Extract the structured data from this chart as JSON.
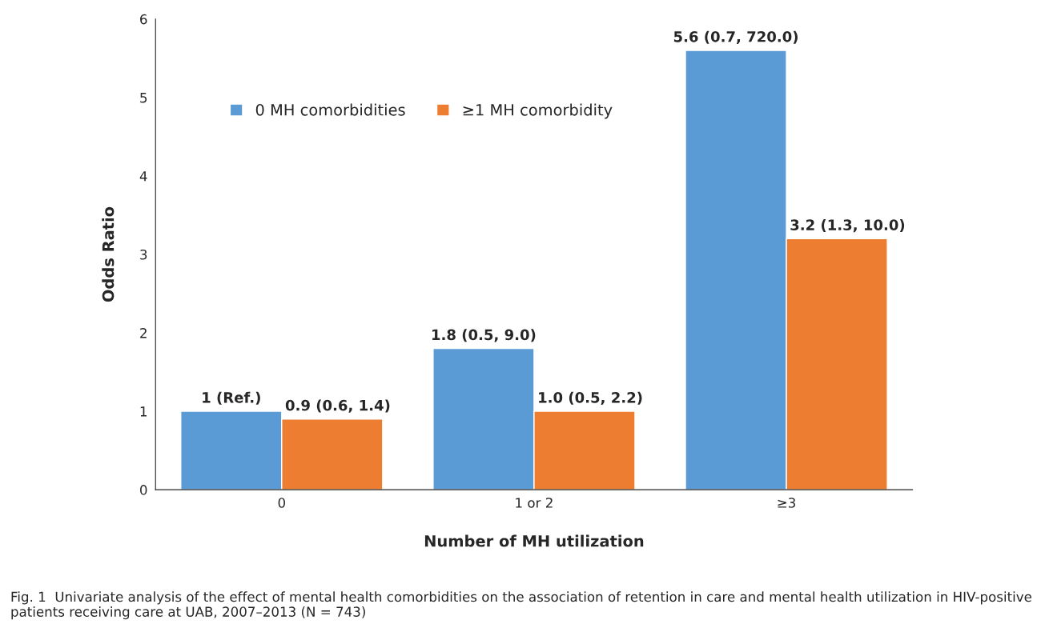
{
  "chart_data": {
    "type": "bar",
    "xlabel": "Number of MH utilization",
    "ylabel": "Odds Ratio",
    "categories": [
      "0",
      "1 or 2",
      "≥3"
    ],
    "series": [
      {
        "name": "0 MH comorbidities",
        "color": "#5b9bd5",
        "values": [
          1,
          1.8,
          5.6
        ],
        "value_labels": [
          "1 (Ref.)",
          "1.8 (0.5, 9.0)",
          "5.6 (0.7, 720.0)"
        ]
      },
      {
        "name": "≥1 MH comorbidity",
        "color": "#ed7d31",
        "values": [
          0.9,
          1.0,
          3.2
        ],
        "value_labels": [
          "0.9 (0.6, 1.4)",
          "1.0 (0.5, 2.2)",
          "3.2 (1.3, 10.0)"
        ]
      }
    ],
    "ylim": [
      0,
      6
    ],
    "yticks": [
      0,
      1,
      2,
      3,
      4,
      5,
      6
    ],
    "grid": false,
    "legend": "top left",
    "annotations": [
      "Fig. 1  Univariate analysis of the effect of mental health comorbidities on the association of retention in care and mental health utilization in HIV-positive patients receiving care at UAB, 2007–2013 (N = 743)"
    ]
  }
}
